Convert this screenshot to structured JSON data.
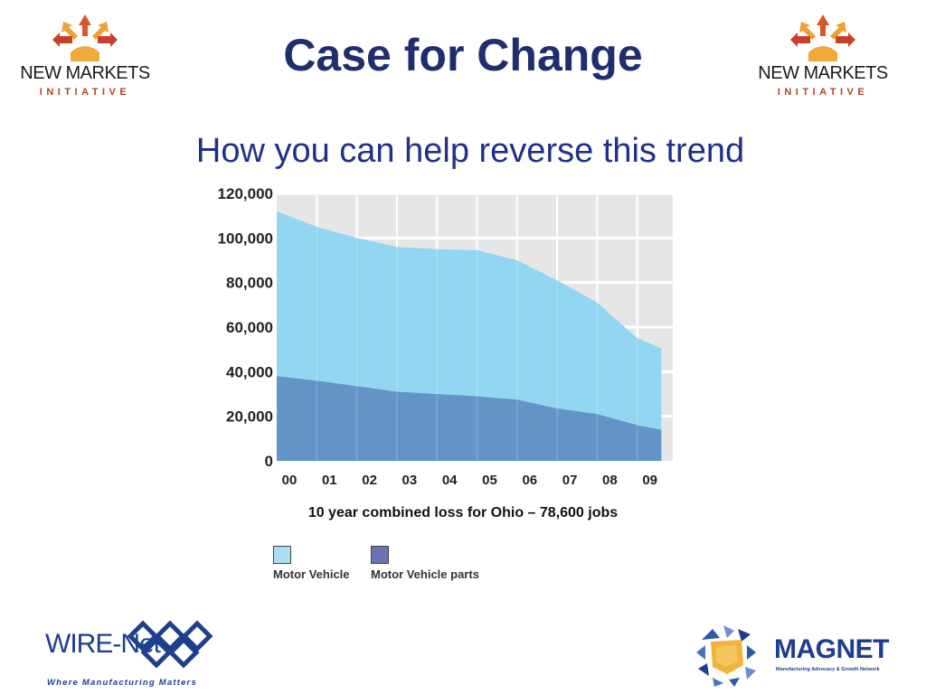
{
  "header": {
    "title": "Case for Change",
    "subtitle": "How you can help reverse this trend"
  },
  "logos": {
    "new_markets": {
      "name": "NEW MARKETS",
      "sub": "INITIATIVE"
    },
    "wire_net": {
      "name": "WIRE-Net",
      "tagline": "Where Manufacturing Matters"
    },
    "magnet": {
      "name": "MAGNET",
      "tagline": "Manufacturing Advocacy & Growth Network"
    }
  },
  "colors": {
    "title": "#1e2e6e",
    "subtitle": "#20308a",
    "motor_vehicle": "#93d6f2",
    "motor_vehicle_parts": "#5f8ec3",
    "plot_background": "#e6e6e6",
    "logo_accent": "#b2432a"
  },
  "chart_data": {
    "type": "area",
    "categories": [
      "00",
      "01",
      "02",
      "03",
      "04",
      "05",
      "06",
      "07",
      "08",
      "09"
    ],
    "yticks": [
      "0",
      "20,000",
      "40,000",
      "60,000",
      "80,000",
      "100,000",
      "120,000"
    ],
    "ylim": [
      0,
      120000
    ],
    "grid": true,
    "stacked": false,
    "x": [
      0,
      1,
      2,
      3,
      4,
      5,
      6,
      7,
      8,
      9,
      9.6
    ],
    "series": [
      {
        "name": "Motor Vehicle",
        "values": [
          112000,
          105000,
          100000,
          96000,
          95000,
          94500,
          90000,
          81000,
          71000,
          55000,
          50500
        ]
      },
      {
        "name": "Motor Vehicle parts",
        "values": [
          38000,
          36000,
          33500,
          31000,
          30000,
          29000,
          27500,
          23500,
          21000,
          16000,
          14000
        ]
      }
    ],
    "caption": "10 year combined loss for Ohio – 78,600 jobs",
    "legend": [
      "Motor Vehicle",
      "Motor Vehicle parts"
    ],
    "legend_position": "bottom-left"
  }
}
